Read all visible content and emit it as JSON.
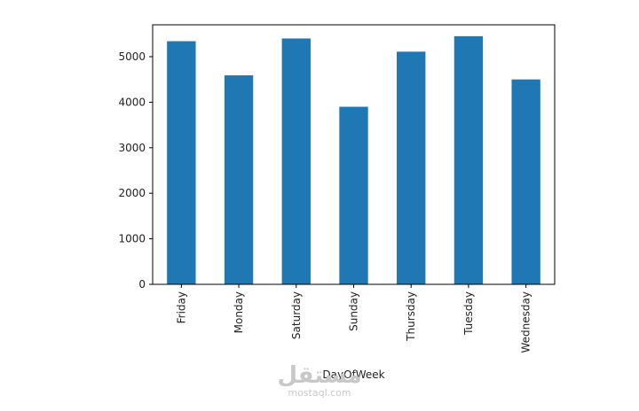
{
  "chart_data": {
    "type": "bar",
    "categories": [
      "Friday",
      "Monday",
      "Saturday",
      "Sunday",
      "Thursday",
      "Tuesday",
      "Wednesday"
    ],
    "values": [
      5340,
      4590,
      5400,
      3900,
      5110,
      5450,
      4500
    ],
    "xlabel": "DayOfWeek",
    "ylabel": "",
    "ylim": [
      0,
      5700
    ],
    "yticks": [
      0,
      1000,
      2000,
      3000,
      4000,
      5000
    ],
    "grid": false,
    "legend": "none",
    "bar_color": "#1f77b4"
  },
  "watermark": {
    "logo_text": "مستقل",
    "url": "mostaql.com",
    "color": "#c8c8c8"
  }
}
